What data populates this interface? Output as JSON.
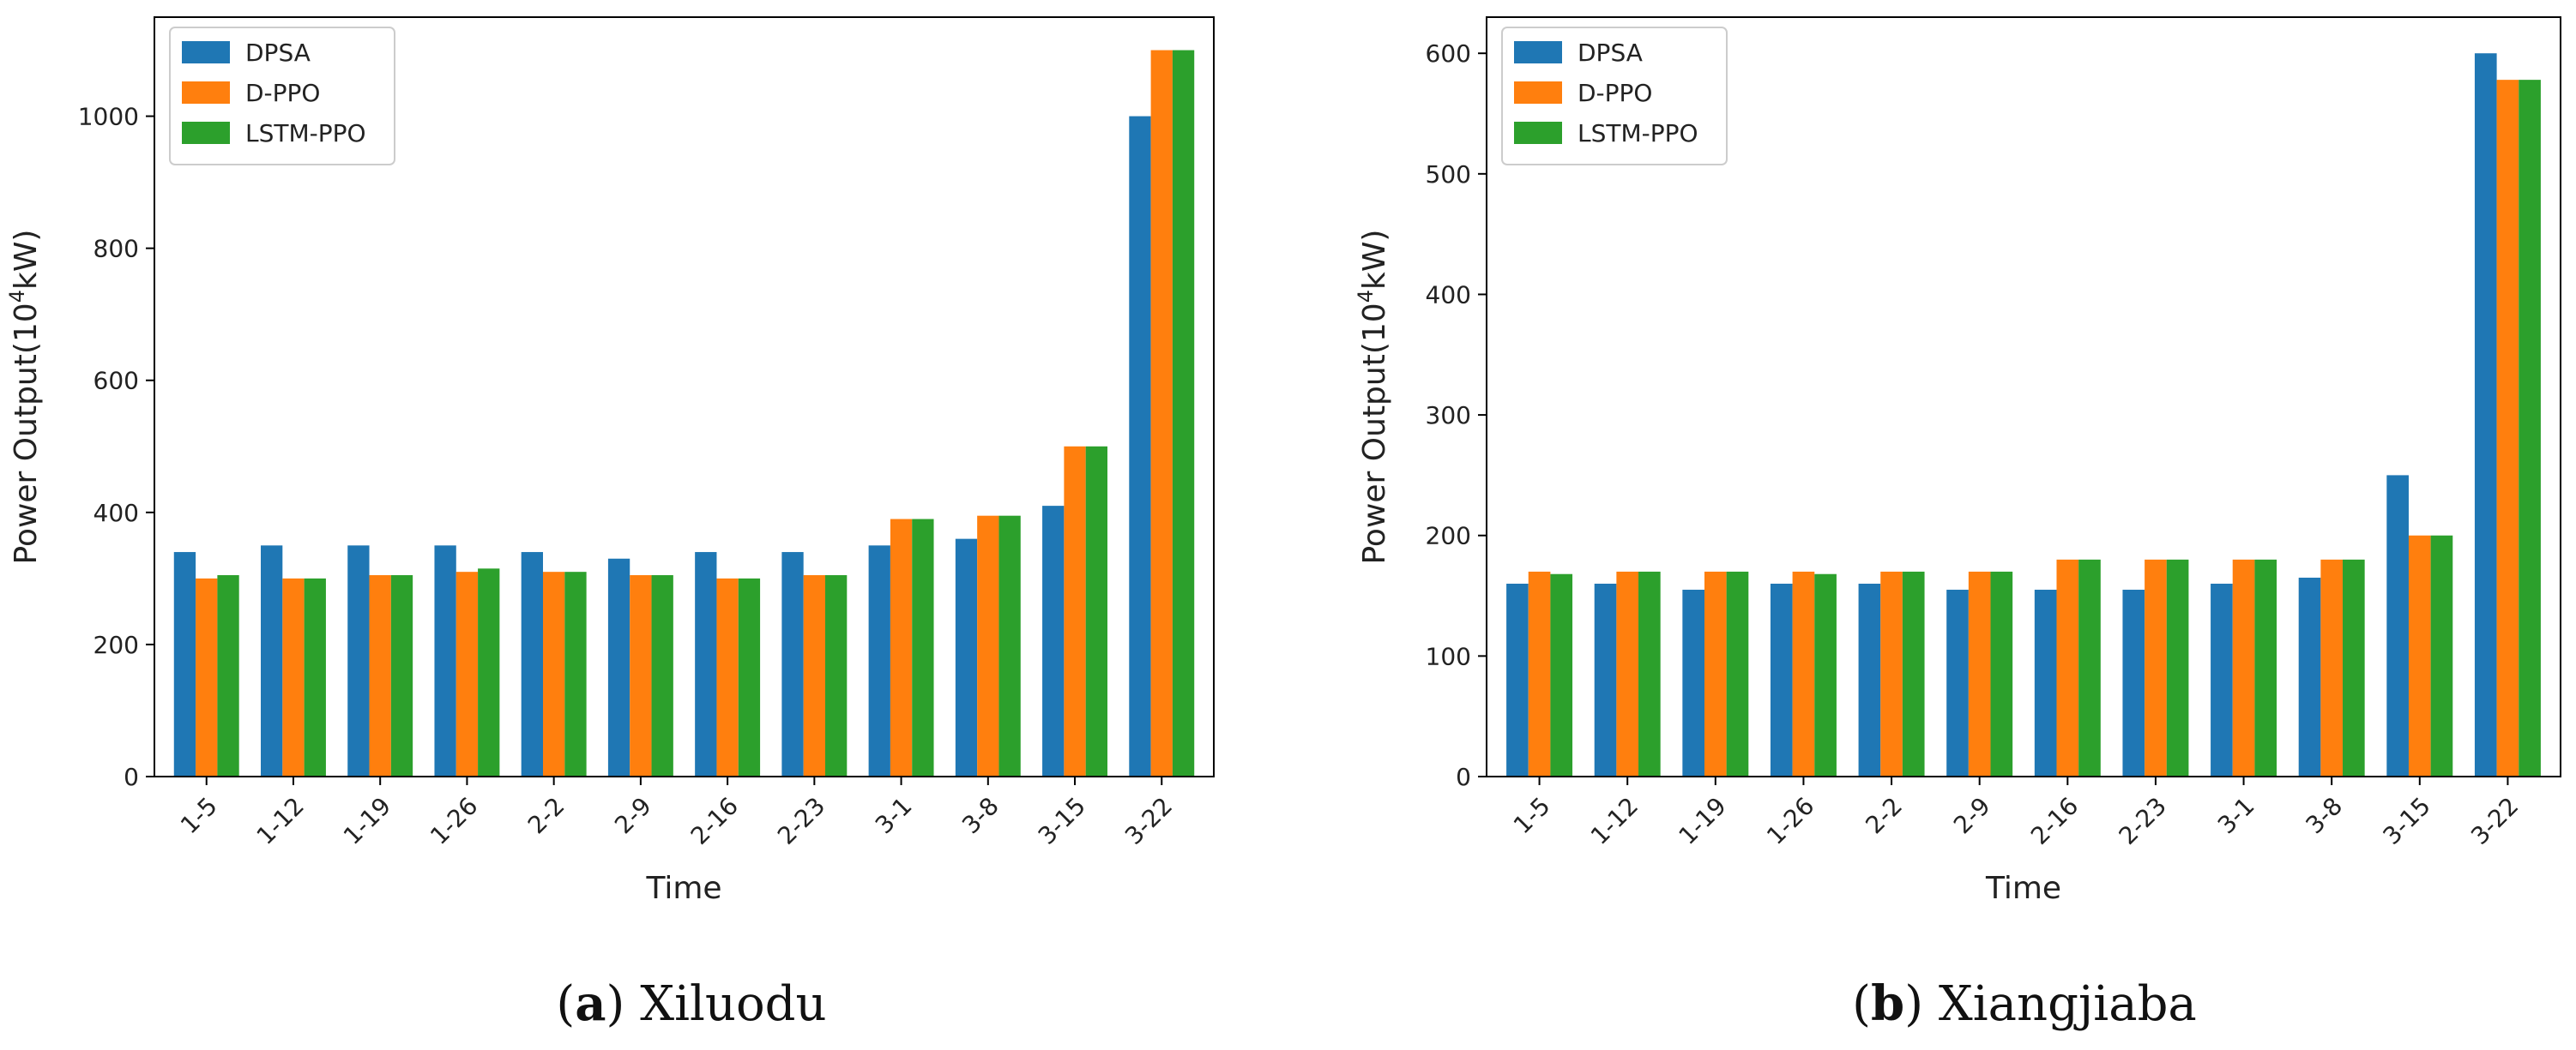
{
  "chart_data": [
    {
      "type": "bar",
      "caption_label": "a",
      "caption_title": "Xiluodu",
      "xlabel": "Time",
      "ylabel": "Power Output(10",
      "ylabel_sup": "4",
      "ylabel_unit": "kW)",
      "ylim": [
        0,
        1150
      ],
      "yticks": [
        0,
        200,
        400,
        600,
        800,
        1000
      ],
      "categories": [
        "1-5",
        "1-12",
        "1-19",
        "1-26",
        "2-2",
        "2-9",
        "2-16",
        "2-23",
        "3-1",
        "3-8",
        "3-15",
        "3-22"
      ],
      "legend_position": "top-left",
      "series": [
        {
          "name": "DPSA",
          "color": "#1f77b4",
          "values": [
            340,
            350,
            350,
            350,
            340,
            330,
            340,
            340,
            350,
            360,
            410,
            1000
          ]
        },
        {
          "name": "D-PPO",
          "color": "#ff7f0e",
          "values": [
            300,
            300,
            305,
            310,
            310,
            305,
            300,
            305,
            390,
            395,
            500,
            1100
          ]
        },
        {
          "name": "LSTM-PPO",
          "color": "#2ca02c",
          "values": [
            305,
            300,
            305,
            315,
            310,
            305,
            300,
            305,
            390,
            395,
            500,
            1100
          ]
        }
      ]
    },
    {
      "type": "bar",
      "caption_label": "b",
      "caption_title": "Xiangjiaba",
      "xlabel": "Time",
      "ylabel": "Power Output(10",
      "ylabel_sup": "4",
      "ylabel_unit": "kW)",
      "ylim": [
        0,
        630
      ],
      "yticks": [
        0,
        100,
        200,
        300,
        400,
        500,
        600
      ],
      "categories": [
        "1-5",
        "1-12",
        "1-19",
        "1-26",
        "2-2",
        "2-9",
        "2-16",
        "2-23",
        "3-1",
        "3-8",
        "3-15",
        "3-22"
      ],
      "legend_position": "top-left",
      "series": [
        {
          "name": "DPSA",
          "color": "#1f77b4",
          "values": [
            160,
            160,
            155,
            160,
            160,
            155,
            155,
            155,
            160,
            165,
            250,
            600
          ]
        },
        {
          "name": "D-PPO",
          "color": "#ff7f0e",
          "values": [
            170,
            170,
            170,
            170,
            170,
            170,
            180,
            180,
            180,
            180,
            200,
            578
          ]
        },
        {
          "name": "LSTM-PPO",
          "color": "#2ca02c",
          "values": [
            168,
            170,
            170,
            168,
            170,
            170,
            180,
            180,
            180,
            180,
            200,
            578
          ]
        }
      ]
    }
  ]
}
